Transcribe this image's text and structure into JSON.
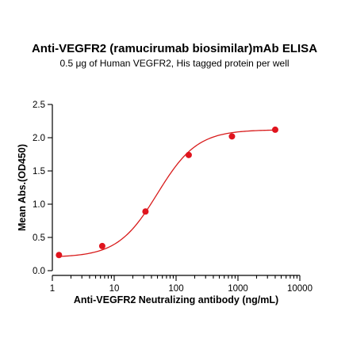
{
  "chart_data": {
    "type": "scatter",
    "title": "Anti-VEGFR2 (ramucirumab biosimilar)mAb ELISA",
    "subtitle": "0.5 μg of Human VEGFR2, His tagged protein per well",
    "xlabel": "Anti-VEGFR2 Neutralizing antibody  (ng/mL)",
    "ylabel": "Mean Abs.(OD450)",
    "x_scale": "log",
    "xlim": [
      1,
      10000
    ],
    "ylim": [
      0,
      2.5
    ],
    "x_ticks": [
      1,
      10,
      100,
      1000,
      10000
    ],
    "x_tick_labels": [
      "1",
      "10",
      "100",
      "1000",
      "10000"
    ],
    "y_ticks": [
      0,
      0.5,
      1,
      1.5,
      2,
      2.5
    ],
    "y_tick_labels": [
      "0.0",
      "0.5",
      "1.0",
      "1.5",
      "2.0",
      "2.5"
    ],
    "grid": false,
    "colors": {
      "series": "#e0141e",
      "curve": "#d81b1b"
    },
    "series": [
      {
        "x": [
          1.28,
          6.4,
          32,
          160,
          800,
          4000
        ],
        "y": [
          0.235,
          0.37,
          0.89,
          1.74,
          2.02,
          2.12
        ],
        "fit": "4PL"
      }
    ],
    "fit_curve": {
      "bottom": 0.2,
      "top": 2.12,
      "ec50": 50,
      "hill": 1.35
    }
  }
}
